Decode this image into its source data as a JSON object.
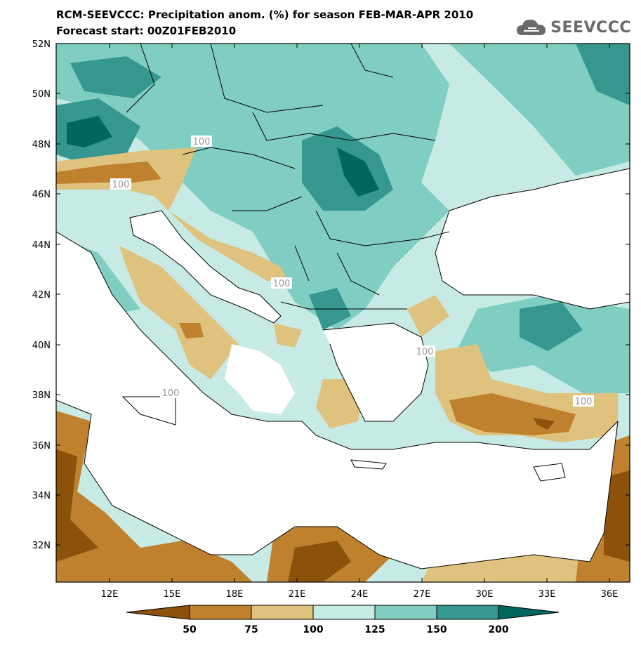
{
  "title": {
    "line1": "RCM-SEEVCCC: Precipitation anom. (%) for season FEB-MAR-APR 2010",
    "line2": "Forecast start: 00Z01FEB2010"
  },
  "logo": {
    "text": "SEEVCCC",
    "icon": "cloud-icon"
  },
  "axes": {
    "lat_labels": [
      "52N",
      "50N",
      "48N",
      "46N",
      "44N",
      "42N",
      "40N",
      "38N",
      "36N",
      "34N",
      "32N"
    ],
    "lon_labels": [
      "12E",
      "15E",
      "18E",
      "21E",
      "24E",
      "27E",
      "30E",
      "33E",
      "36E"
    ]
  },
  "contour_labels": [
    "100",
    "100",
    "100",
    "100",
    "100",
    "100"
  ],
  "colorbar": {
    "levels": [
      "50",
      "75",
      "100",
      "125",
      "150",
      "200"
    ],
    "colors": [
      "#8c510a",
      "#bf812d",
      "#dfc27d",
      "#c7eae5",
      "#80cdc1",
      "#35978f",
      "#01665e"
    ]
  }
}
